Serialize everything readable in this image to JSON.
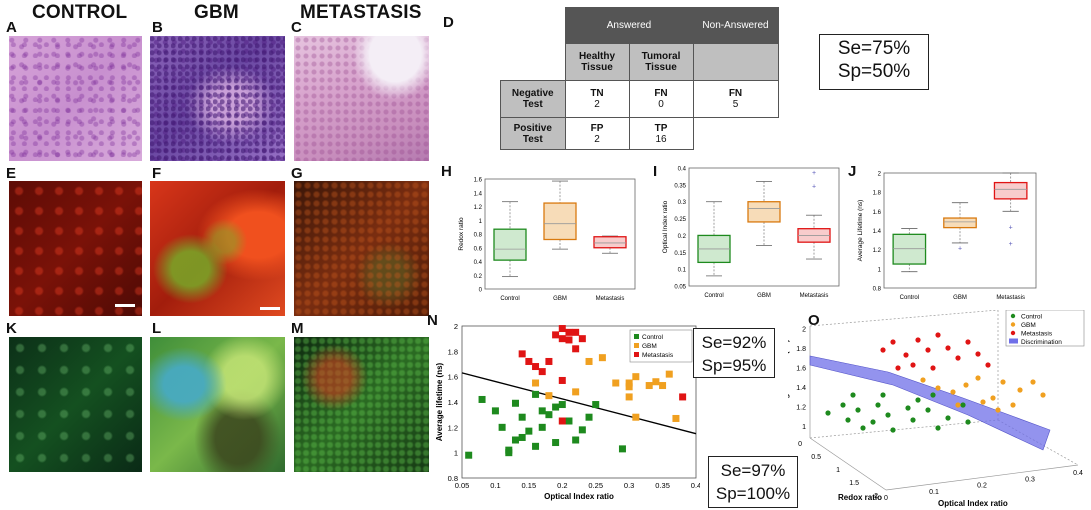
{
  "headers": {
    "control": "CONTROL",
    "gbm": "GBM",
    "metastasis": "METASTASIS"
  },
  "panel_letters": {
    "A": "A",
    "B": "B",
    "C": "C",
    "D": "D",
    "E": "E",
    "F": "F",
    "G": "G",
    "H": "H",
    "I": "I",
    "J": "J",
    "K": "K",
    "L": "L",
    "M": "M",
    "N": "N",
    "O": "O"
  },
  "table_d": {
    "answered": "Answered",
    "non_answered": "Non-Answered",
    "healthy_l1": "Healthy",
    "healthy_l2": "Tissue",
    "tumoral_l1": "Tumoral",
    "tumoral_l2": "Tissue",
    "neg_l1": "Negative",
    "neg_l2": "Test",
    "pos_l1": "Positive",
    "pos_l2": "Test",
    "tn": "TN",
    "tn_v": "2",
    "fn": "FN",
    "fn_v": "0",
    "fn2": "FN",
    "fn2_v": "5",
    "fp": "FP",
    "fp_v": "2",
    "tp": "TP",
    "tp_v": "16"
  },
  "stats_d": {
    "se": "Se=75%",
    "sp": "Sp=50%"
  },
  "stats_n": {
    "se": "Se=92%",
    "sp": "Sp=95%"
  },
  "stats_o": {
    "se": "Se=97%",
    "sp": "Sp=100%"
  },
  "colors": {
    "control": "#1e8a1e",
    "gbm": "#f0a020",
    "metastasis": "#e01414",
    "discrimination": "#6f6fe8"
  },
  "chart_data": [
    {
      "panel": "H",
      "type": "box",
      "ylabel": "Redox ratio",
      "categories": [
        "Control",
        "GBM",
        "Metastasis"
      ],
      "ylim": [
        0,
        1.6
      ],
      "yticks": [
        "0",
        "0.2",
        "0.4",
        "0.6",
        "0.8",
        "1",
        "1.2",
        "1.4",
        "1.6"
      ],
      "boxes": [
        {
          "min": 0.18,
          "q1": 0.42,
          "median": 0.58,
          "q3": 0.87,
          "max": 1.27
        },
        {
          "min": 0.58,
          "q1": 0.72,
          "median": 0.95,
          "q3": 1.25,
          "max": 1.57
        },
        {
          "min": 0.52,
          "q1": 0.6,
          "median": 0.67,
          "q3": 0.76,
          "max": 0.77
        }
      ]
    },
    {
      "panel": "I",
      "type": "box",
      "ylabel": "Optical Index ratio",
      "categories": [
        "Control",
        "GBM",
        "Metastasis"
      ],
      "ylim": [
        0.05,
        0.4
      ],
      "yticks": [
        "0.05",
        "0.1",
        "0.15",
        "0.2",
        "0.25",
        "0.3",
        "0.35",
        "0.4"
      ],
      "boxes": [
        {
          "min": 0.08,
          "q1": 0.12,
          "median": 0.16,
          "q3": 0.2,
          "max": 0.3
        },
        {
          "min": 0.17,
          "q1": 0.24,
          "median": 0.28,
          "q3": 0.3,
          "max": 0.36
        },
        {
          "min": 0.13,
          "q1": 0.18,
          "median": 0.2,
          "q3": 0.22,
          "max": 0.26
        }
      ],
      "outliers": [
        {
          "cat": 2,
          "y": 0.385
        },
        {
          "cat": 2,
          "y": 0.345
        }
      ]
    },
    {
      "panel": "J",
      "type": "box",
      "ylabel": "Average Lifetime (ns)",
      "categories": [
        "Control",
        "GBM",
        "Metastasis"
      ],
      "ylim": [
        0.8,
        2
      ],
      "yticks": [
        "0.8",
        "1",
        "1.2",
        "1.4",
        "1.6",
        "1.8",
        "2"
      ],
      "boxes": [
        {
          "min": 0.97,
          "q1": 1.05,
          "median": 1.21,
          "q3": 1.36,
          "max": 1.42
        },
        {
          "min": 1.27,
          "q1": 1.43,
          "median": 1.49,
          "q3": 1.53,
          "max": 1.69
        },
        {
          "min": 1.6,
          "q1": 1.73,
          "median": 1.83,
          "q3": 1.9,
          "max": 2.0
        }
      ],
      "outliers": [
        {
          "cat": 1,
          "y": 1.21
        },
        {
          "cat": 2,
          "y": 1.43
        },
        {
          "cat": 2,
          "y": 1.26
        }
      ]
    },
    {
      "panel": "N",
      "type": "scatter",
      "xlabel": "Optical Index ratio",
      "ylabel": "Average lifetime (ns)",
      "xlim": [
        0.05,
        0.4
      ],
      "ylim": [
        0.8,
        2
      ],
      "xticks": [
        "0.05",
        "0.1",
        "0.15",
        "0.2",
        "0.25",
        "0.3",
        "0.35",
        "0.4"
      ],
      "yticks": [
        "0.8",
        "1",
        "1.2",
        "1.4",
        "1.6",
        "1.8",
        "2"
      ],
      "legend": [
        "Control",
        "GBM",
        "Metastasis"
      ],
      "boundary": [
        [
          0.05,
          1.63
        ],
        [
          0.4,
          1.15
        ]
      ],
      "series": [
        {
          "name": "Control",
          "points": [
            [
              0.06,
              0.98
            ],
            [
              0.08,
              1.42
            ],
            [
              0.1,
              1.33
            ],
            [
              0.11,
              1.2
            ],
            [
              0.12,
              1.02
            ],
            [
              0.12,
              1.0
            ],
            [
              0.13,
              1.1
            ],
            [
              0.13,
              1.39
            ],
            [
              0.14,
              1.12
            ],
            [
              0.14,
              1.28
            ],
            [
              0.15,
              1.17
            ],
            [
              0.16,
              1.46
            ],
            [
              0.16,
              1.05
            ],
            [
              0.17,
              1.2
            ],
            [
              0.17,
              1.33
            ],
            [
              0.18,
              1.3
            ],
            [
              0.19,
              1.08
            ],
            [
              0.19,
              1.36
            ],
            [
              0.2,
              1.38
            ],
            [
              0.21,
              1.25
            ],
            [
              0.22,
              1.1
            ],
            [
              0.23,
              1.18
            ],
            [
              0.24,
              1.28
            ],
            [
              0.25,
              1.38
            ],
            [
              0.29,
              1.03
            ]
          ]
        },
        {
          "name": "GBM",
          "points": [
            [
              0.16,
              1.55
            ],
            [
              0.18,
              1.45
            ],
            [
              0.22,
              1.48
            ],
            [
              0.24,
              1.72
            ],
            [
              0.26,
              1.75
            ],
            [
              0.28,
              1.55
            ],
            [
              0.3,
              1.55
            ],
            [
              0.3,
              1.44
            ],
            [
              0.31,
              1.28
            ],
            [
              0.31,
              1.6
            ],
            [
              0.33,
              1.53
            ],
            [
              0.34,
              1.56
            ],
            [
              0.35,
              1.53
            ],
            [
              0.36,
              1.62
            ],
            [
              0.37,
              1.27
            ],
            [
              0.3,
              1.52
            ]
          ]
        },
        {
          "name": "Metastasis",
          "points": [
            [
              0.14,
              1.78
            ],
            [
              0.15,
              1.72
            ],
            [
              0.16,
              1.68
            ],
            [
              0.17,
              1.64
            ],
            [
              0.18,
              1.72
            ],
            [
              0.19,
              1.93
            ],
            [
              0.2,
              1.98
            ],
            [
              0.2,
              1.9
            ],
            [
              0.21,
              1.89
            ],
            [
              0.21,
              1.95
            ],
            [
              0.22,
              1.95
            ],
            [
              0.23,
              1.9
            ],
            [
              0.22,
              1.82
            ],
            [
              0.2,
              1.25
            ],
            [
              0.38,
              1.44
            ],
            [
              0.2,
              1.57
            ]
          ]
        }
      ]
    },
    {
      "panel": "O",
      "type": "scatter3d",
      "xlabel": "Optical Index ratio",
      "ylabel": "Redox ratio",
      "zlabel": "Average Lifetime (ns)",
      "zticks": [
        "1",
        "1.2",
        "1.4",
        "1.6",
        "1.8",
        "2"
      ],
      "yticks": [
        "0",
        "0.5",
        "1",
        "1.5",
        "2"
      ],
      "xticks": [
        "0",
        "0.1",
        "0.2",
        "0.3",
        "0.4"
      ],
      "legend": [
        "Control",
        "GBM",
        "Metastasis",
        "Discrimination"
      ]
    }
  ]
}
